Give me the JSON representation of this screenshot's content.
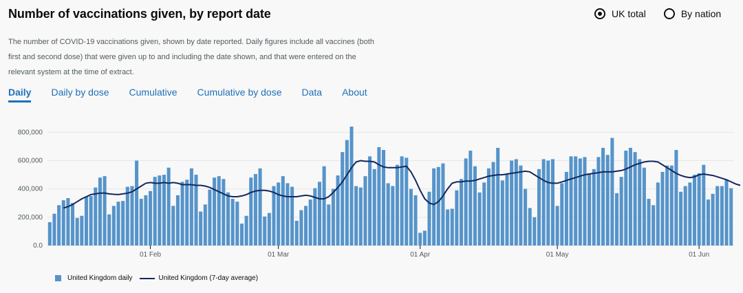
{
  "header": {
    "title": "Number of vaccinations given, by report date"
  },
  "radios": [
    {
      "label": "UK total",
      "checked": true
    },
    {
      "label": "By nation",
      "checked": false
    }
  ],
  "description": "The number of COVID-19 vaccinations given, shown by date reported. Daily figures include all vaccines (both first and second dose) that were given up to and including the date shown, and that were entered on the relevant system at the time of extract.",
  "tabs": [
    {
      "label": "Daily",
      "active": true
    },
    {
      "label": "Daily by dose",
      "active": false
    },
    {
      "label": "Cumulative",
      "active": false
    },
    {
      "label": "Cumulative by dose",
      "active": false
    },
    {
      "label": "Data",
      "active": false
    },
    {
      "label": "About",
      "active": false
    }
  ],
  "colors": {
    "bar": "#5694ca",
    "line": "#12275d",
    "grid": "#e6e6e6",
    "link": "#1d70b8"
  },
  "chart_data": {
    "type": "bar",
    "start_date": "2021-01-10",
    "ylim": [
      0,
      850000
    ],
    "yticks": [
      0,
      200000,
      400000,
      600000,
      800000
    ],
    "ytick_labels": [
      "0.0",
      "200,000",
      "400,000",
      "600,000",
      "800,000"
    ],
    "xtick_dates": [
      "2021-02-01",
      "2021-03-01",
      "2021-04-01",
      "2021-05-01",
      "2021-06-01"
    ],
    "xtick_labels": [
      "01 Feb",
      "01 Mar",
      "01 Apr",
      "01 May",
      "01 Jun"
    ],
    "grid": true,
    "legend_position": "bottom-left",
    "series": [
      {
        "name": "United Kingdom daily",
        "type": "bar",
        "values": [
          165000,
          225000,
          285000,
          320000,
          335000,
          300000,
          195000,
          210000,
          345000,
          350000,
          410000,
          480000,
          490000,
          220000,
          280000,
          310000,
          315000,
          415000,
          420000,
          600000,
          330000,
          355000,
          385000,
          485000,
          495000,
          500000,
          550000,
          280000,
          355000,
          450000,
          465000,
          545000,
          500000,
          240000,
          290000,
          395000,
          480000,
          490000,
          470000,
          375000,
          330000,
          310000,
          155000,
          210000,
          480000,
          505000,
          545000,
          205000,
          230000,
          420000,
          445000,
          490000,
          440000,
          415000,
          175000,
          250000,
          280000,
          325000,
          405000,
          450000,
          560000,
          290000,
          400000,
          495000,
          660000,
          745000,
          840000,
          420000,
          410000,
          490000,
          630000,
          540000,
          695000,
          675000,
          440000,
          420000,
          570000,
          630000,
          620000,
          400000,
          355000,
          90000,
          105000,
          380000,
          545000,
          555000,
          580000,
          255000,
          260000,
          390000,
          470000,
          615000,
          670000,
          560000,
          375000,
          445000,
          545000,
          590000,
          690000,
          460000,
          505000,
          600000,
          610000,
          565000,
          400000,
          265000,
          200000,
          540000,
          610000,
          600000,
          610000,
          280000,
          440000,
          520000,
          630000,
          630000,
          615000,
          625000,
          510000,
          540000,
          625000,
          690000,
          640000,
          760000,
          370000,
          485000,
          670000,
          690000,
          660000,
          610000,
          550000,
          330000,
          285000,
          445000,
          520000,
          565000,
          565000,
          675000,
          380000,
          420000,
          445000,
          500000,
          510000,
          570000,
          325000,
          365000,
          420000,
          420000,
          465000,
          405000
        ]
      },
      {
        "name": "United Kingdom (7-day average)",
        "type": "line",
        "values": [
          null,
          null,
          null,
          265000,
          275000,
          290000,
          310000,
          330000,
          345000,
          360000,
          365000,
          370000,
          370000,
          365000,
          362000,
          360000,
          365000,
          370000,
          380000,
          400000,
          420000,
          440000,
          445000,
          440000,
          440000,
          445000,
          440000,
          445000,
          440000,
          430000,
          430000,
          430000,
          425000,
          425000,
          420000,
          410000,
          395000,
          380000,
          365000,
          350000,
          345000,
          345000,
          350000,
          360000,
          375000,
          385000,
          390000,
          390000,
          385000,
          375000,
          360000,
          350000,
          345000,
          345000,
          345000,
          350000,
          355000,
          350000,
          340000,
          330000,
          330000,
          345000,
          375000,
          410000,
          450000,
          500000,
          550000,
          590000,
          600000,
          595000,
          595000,
          590000,
          570000,
          555000,
          550000,
          550000,
          550000,
          555000,
          560000,
          520000,
          460000,
          390000,
          330000,
          300000,
          290000,
          310000,
          350000,
          400000,
          440000,
          450000,
          450000,
          455000,
          455000,
          460000,
          470000,
          480000,
          490000,
          495000,
          500000,
          500000,
          505000,
          510000,
          515000,
          520000,
          525000,
          520000,
          500000,
          480000,
          460000,
          445000,
          440000,
          440000,
          450000,
          460000,
          470000,
          480000,
          490000,
          500000,
          505000,
          510000,
          515000,
          520000,
          520000,
          520000,
          525000,
          530000,
          540000,
          555000,
          570000,
          580000,
          590000,
          595000,
          595000,
          590000,
          570000,
          550000,
          530000,
          510000,
          495000,
          485000,
          480000,
          485000,
          500000,
          505000,
          500000,
          495000,
          485000,
          475000,
          465000,
          450000,
          435000,
          425000
        ]
      }
    ]
  },
  "legend": {
    "bar_label": "United Kingdom daily",
    "line_label": "United Kingdom (7-day average)"
  }
}
